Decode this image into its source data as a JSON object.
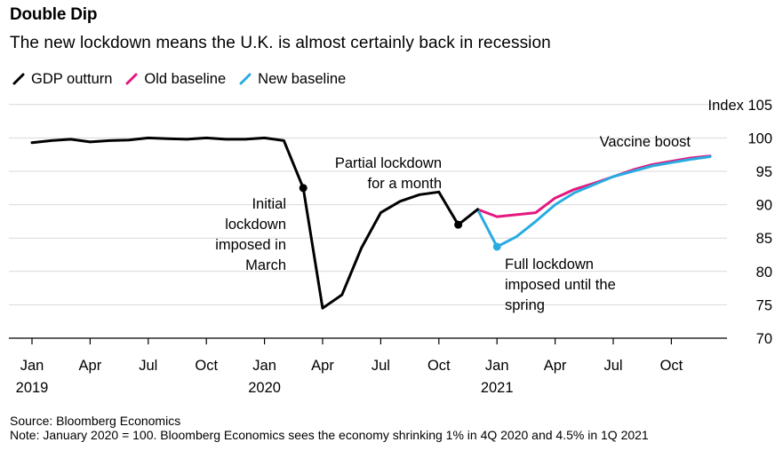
{
  "header": {
    "title": "Double Dip",
    "subtitle": "The new lockdown means the U.K. is almost certainly back in recession"
  },
  "legend": [
    {
      "label": "GDP outturn",
      "color": "#000000"
    },
    {
      "label": "Old baseline",
      "color": "#e5177e"
    },
    {
      "label": "New baseline",
      "color": "#29abe2"
    }
  ],
  "footer": {
    "source": "Source: Bloomberg Economics",
    "note": "Note: January 2020 = 100. Bloomberg Economics sees the economy shrinking 1% in 4Q 2020 and 4.5% in 1Q 2021"
  },
  "chart_data": {
    "type": "line",
    "title": "Double Dip",
    "subtitle": "The new lockdown means the U.K. is almost certainly back in recession",
    "ylabel": "Index",
    "ylim": [
      70,
      105
    ],
    "yticks": [
      {
        "value": 70,
        "label": "70"
      },
      {
        "value": 75,
        "label": "75"
      },
      {
        "value": 80,
        "label": "80"
      },
      {
        "value": 85,
        "label": "85"
      },
      {
        "value": 90,
        "label": "90"
      },
      {
        "value": 95,
        "label": "95"
      },
      {
        "value": 100,
        "label": "100"
      },
      {
        "value": 105,
        "label": "Index 105"
      }
    ],
    "xticks": [
      {
        "date": "2019-01",
        "label": "Jan",
        "year": "2019"
      },
      {
        "date": "2019-04",
        "label": "Apr"
      },
      {
        "date": "2019-07",
        "label": "Jul"
      },
      {
        "date": "2019-10",
        "label": "Oct"
      },
      {
        "date": "2020-01",
        "label": "Jan",
        "year": "2020"
      },
      {
        "date": "2020-04",
        "label": "Apr"
      },
      {
        "date": "2020-07",
        "label": "Jul"
      },
      {
        "date": "2020-10",
        "label": "Oct"
      },
      {
        "date": "2021-01",
        "label": "Jan",
        "year": "2021"
      },
      {
        "date": "2021-04",
        "label": "Apr"
      },
      {
        "date": "2021-07",
        "label": "Jul"
      },
      {
        "date": "2021-10",
        "label": "Oct"
      }
    ],
    "grid": true,
    "legend_position": "top-left",
    "series": [
      {
        "name": "GDP outturn",
        "color": "#000000",
        "points": [
          {
            "x": "2019-01",
            "y": 99.3
          },
          {
            "x": "2019-02",
            "y": 99.6
          },
          {
            "x": "2019-03",
            "y": 99.8
          },
          {
            "x": "2019-04",
            "y": 99.4
          },
          {
            "x": "2019-05",
            "y": 99.6
          },
          {
            "x": "2019-06",
            "y": 99.7
          },
          {
            "x": "2019-07",
            "y": 100.0
          },
          {
            "x": "2019-08",
            "y": 99.9
          },
          {
            "x": "2019-09",
            "y": 99.8
          },
          {
            "x": "2019-10",
            "y": 100.0
          },
          {
            "x": "2019-11",
            "y": 99.8
          },
          {
            "x": "2019-12",
            "y": 99.8
          },
          {
            "x": "2020-01",
            "y": 100.0
          },
          {
            "x": "2020-02",
            "y": 99.6
          },
          {
            "x": "2020-03",
            "y": 92.5
          },
          {
            "x": "2020-04",
            "y": 74.5
          },
          {
            "x": "2020-05",
            "y": 76.5
          },
          {
            "x": "2020-06",
            "y": 83.5
          },
          {
            "x": "2020-07",
            "y": 88.8
          },
          {
            "x": "2020-08",
            "y": 90.5
          },
          {
            "x": "2020-09",
            "y": 91.5
          },
          {
            "x": "2020-10",
            "y": 91.9
          },
          {
            "x": "2020-11",
            "y": 87.0
          },
          {
            "x": "2020-12",
            "y": 89.3
          }
        ]
      },
      {
        "name": "Old baseline",
        "color": "#e5177e",
        "points": [
          {
            "x": "2020-12",
            "y": 89.3
          },
          {
            "x": "2021-01",
            "y": 88.2
          },
          {
            "x": "2021-02",
            "y": 88.5
          },
          {
            "x": "2021-03",
            "y": 88.8
          },
          {
            "x": "2021-04",
            "y": 91.0
          },
          {
            "x": "2021-05",
            "y": 92.3
          },
          {
            "x": "2021-06",
            "y": 93.2
          },
          {
            "x": "2021-07",
            "y": 94.2
          },
          {
            "x": "2021-08",
            "y": 95.2
          },
          {
            "x": "2021-09",
            "y": 96.0
          },
          {
            "x": "2021-10",
            "y": 96.5
          },
          {
            "x": "2021-11",
            "y": 97.0
          },
          {
            "x": "2021-12",
            "y": 97.3
          }
        ]
      },
      {
        "name": "New baseline",
        "color": "#29abe2",
        "points": [
          {
            "x": "2020-12",
            "y": 89.3
          },
          {
            "x": "2021-01",
            "y": 83.7
          },
          {
            "x": "2021-02",
            "y": 85.2
          },
          {
            "x": "2021-03",
            "y": 87.5
          },
          {
            "x": "2021-04",
            "y": 90.0
          },
          {
            "x": "2021-05",
            "y": 91.8
          },
          {
            "x": "2021-06",
            "y": 93.0
          },
          {
            "x": "2021-07",
            "y": 94.2
          },
          {
            "x": "2021-08",
            "y": 95.0
          },
          {
            "x": "2021-09",
            "y": 95.8
          },
          {
            "x": "2021-10",
            "y": 96.3
          },
          {
            "x": "2021-11",
            "y": 96.8
          },
          {
            "x": "2021-12",
            "y": 97.2
          }
        ]
      }
    ],
    "markers": [
      {
        "x": "2020-03",
        "y": 92.5,
        "color": "#000000"
      },
      {
        "x": "2020-11",
        "y": 87.0,
        "color": "#000000"
      },
      {
        "x": "2021-01",
        "y": 83.7,
        "color": "#29abe2"
      }
    ],
    "annotations": [
      {
        "lines": [
          "Initial",
          "lockdown",
          "imposed in",
          "March"
        ]
      },
      {
        "lines": [
          "Partial lockdown",
          "for a month"
        ]
      },
      {
        "lines": [
          "Full lockdown",
          "imposed until the",
          "spring"
        ]
      },
      {
        "lines": [
          "Vaccine boost"
        ]
      }
    ]
  }
}
